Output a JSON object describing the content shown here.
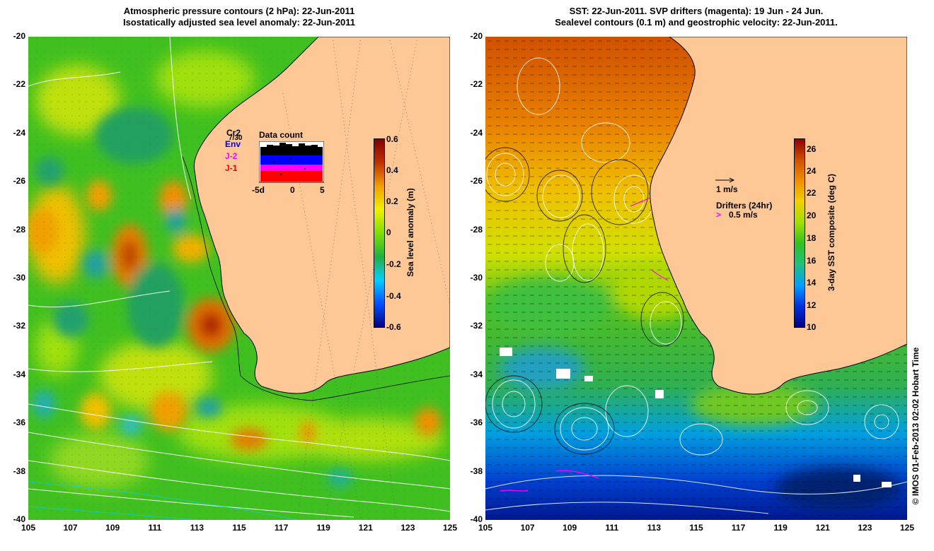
{
  "left_panel": {
    "title_line1": "Atmospheric pressure contours (2 hPa): 22-Jun-2011",
    "title_line2": "Isostatically adjusted sea level anomaly: 22-Jun-2011",
    "colorbar": {
      "label": "Sea level anomaly (m)",
      "ticks": [
        "0.6",
        "0.4",
        "0.2",
        "0",
        "-0.2",
        "-0.4",
        "-0.6"
      ],
      "range": [
        -0.6,
        0.6
      ],
      "colors": [
        "#000080",
        "#0050ff",
        "#00d0ff",
        "#20b040",
        "#80e000",
        "#f0f000",
        "#f0a000",
        "#c03000",
        "#800000"
      ]
    },
    "satellites": [
      {
        "name": "Cr2",
        "color": "#000000"
      },
      {
        "name": "Env",
        "color": "#0000ff"
      },
      {
        "name": "J-2",
        "color": "#ff00ff"
      },
      {
        "name": "J-1",
        "color": "#ff0000"
      }
    ],
    "satellite_count_label": "7/30",
    "data_count": {
      "title": "Data count",
      "xticks": [
        "-5d",
        "0",
        "5"
      ]
    }
  },
  "right_panel": {
    "title_line1": "SST: 22-Jun-2011. SVP drifters (magenta): 19 Jun - 24 Jun.",
    "title_line2": "Sealevel contours (0.1 m) and geostrophic velocity: 22-Jun-2011.",
    "colorbar": {
      "label": "3-day SST composite (deg C)",
      "ticks": [
        "26",
        "24",
        "22",
        "20",
        "18",
        "16",
        "14",
        "12",
        "10"
      ],
      "range": [
        10,
        27
      ],
      "colors": [
        "#000080",
        "#0030e0",
        "#00a0ff",
        "#20c080",
        "#30c020",
        "#a0e000",
        "#f0d000",
        "#f09000",
        "#d05000",
        "#900000"
      ]
    },
    "velocity_scale_label": "1 m/s",
    "drifters_label": "Drifters (24hr)",
    "drifters_scale_label": "0.5 m/s"
  },
  "axes": {
    "y_ticks": [
      "-20",
      "-22",
      "-24",
      "-26",
      "-28",
      "-30",
      "-32",
      "-34",
      "-36",
      "-38",
      "-40"
    ],
    "x_ticks": [
      "105",
      "107",
      "109",
      "111",
      "113",
      "115",
      "117",
      "119",
      "121",
      "123",
      "125"
    ],
    "lon_range": [
      105,
      125
    ],
    "lat_range": [
      -40,
      -20
    ]
  },
  "colors": {
    "land": "#fec896",
    "magenta": "#ff00ff"
  },
  "credit": "© IMOS 01-Feb-2013 02:02 Hobart Time"
}
